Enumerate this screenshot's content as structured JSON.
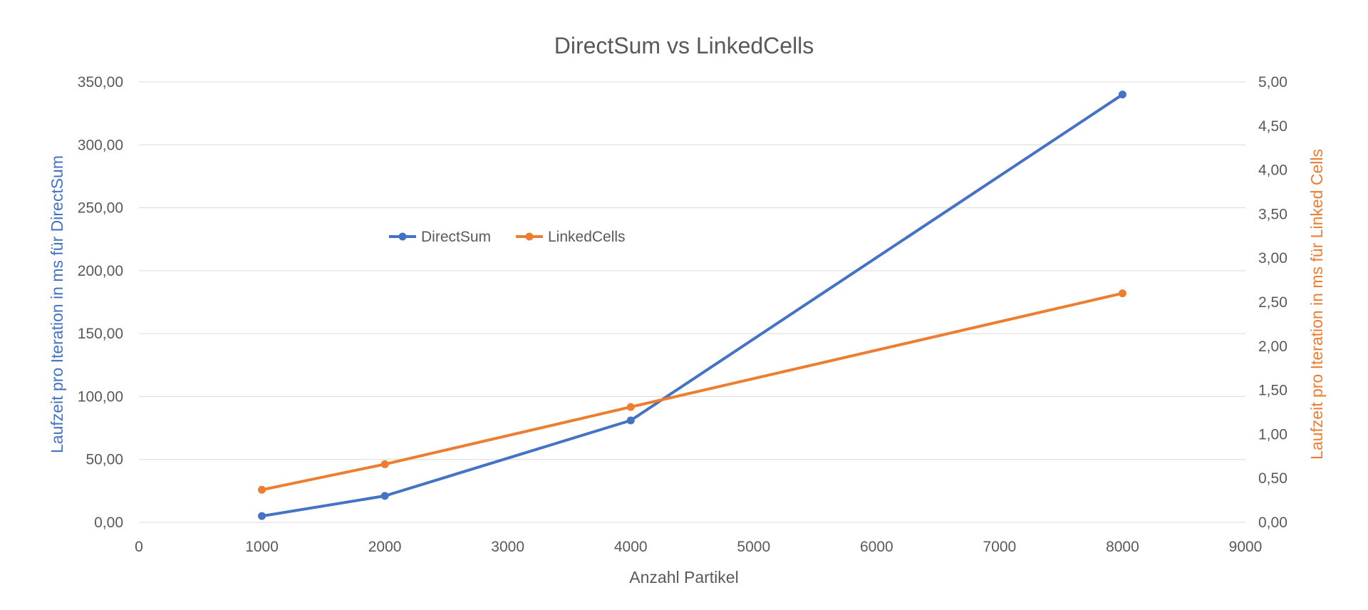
{
  "chart_data": {
    "type": "line",
    "title": "DirectSum vs LinkedCells",
    "xlabel": "Anzahl Partikel",
    "ylabel_left": "Laufzeit pro Iteration in ms für DirectSum",
    "ylabel_right": "Laufzeit pro Iteration in ms für Linked Cells",
    "xlim": [
      0,
      9000
    ],
    "x_ticks": [
      "0",
      "1000",
      "2000",
      "3000",
      "4000",
      "5000",
      "6000",
      "7000",
      "8000",
      "9000"
    ],
    "ylim_left": [
      0,
      350
    ],
    "y_ticks_left": [
      "0,00",
      "50,00",
      "100,00",
      "150,00",
      "200,00",
      "250,00",
      "300,00",
      "350,00"
    ],
    "ylim_right": [
      0,
      5
    ],
    "y_ticks_right": [
      "0,00",
      "0,50",
      "1,00",
      "1,50",
      "2,00",
      "2,50",
      "3,00",
      "3,50",
      "4,00",
      "4,50",
      "5,00"
    ],
    "grid": true,
    "legend_position": "inside-top-left",
    "series": [
      {
        "name": "DirectSum",
        "axis": "left",
        "color": "#4472c4",
        "x": [
          1000,
          2000,
          4000,
          8000
        ],
        "y": [
          5,
          21,
          81,
          340
        ]
      },
      {
        "name": "LinkedCells",
        "axis": "right",
        "color": "#ed7d31",
        "x": [
          1000,
          2000,
          4000,
          8000
        ],
        "y": [
          0.37,
          0.66,
          1.31,
          2.6
        ]
      }
    ]
  }
}
